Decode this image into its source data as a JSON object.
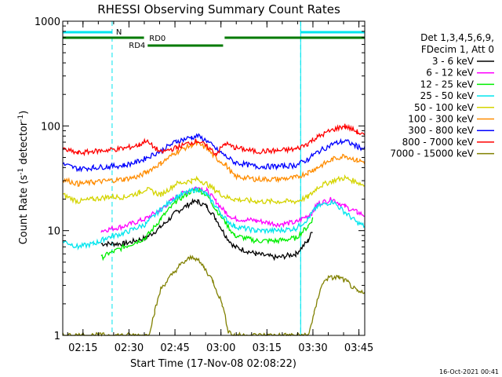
{
  "chart_data": {
    "type": "line",
    "title": "RHESSI Observing Summary Count Rates",
    "xlabel": "Start Time (17-Nov-08 02:08:22)",
    "ylabel_main": "Count Rate (s",
    "ylabel_sup1": "-1",
    "ylabel_mid": " detector",
    "ylabel_sup2": "-1",
    "ylabel_end": ")",
    "yscale": "log",
    "xlim_minutes": [
      0,
      98.5
    ],
    "ylim": [
      1,
      1000
    ],
    "x_ticks": [
      {
        "label": "02:15",
        "minutes": 6.6
      },
      {
        "label": "02:30",
        "minutes": 21.6
      },
      {
        "label": "02:45",
        "minutes": 36.6
      },
      {
        "label": "03:00",
        "minutes": 51.6
      },
      {
        "label": "03:15",
        "minutes": 66.6
      },
      {
        "label": "03:30",
        "minutes": 81.6
      },
      {
        "label": "03:45",
        "minutes": 96.6
      }
    ],
    "y_ticks": [
      {
        "label": "1",
        "value": 1
      },
      {
        "label": "10",
        "value": 10
      },
      {
        "label": "100",
        "value": 100
      },
      {
        "label": "1000",
        "value": 1000
      }
    ],
    "legend_header_1": "Det 1,3,4,5,6,9,",
    "legend_header_2": "FDecim 1, Att 0",
    "legend_placement": "right",
    "footer_date": "16-Oct-2021 00:41",
    "annotations": {
      "night_label": "N",
      "night_color": "#00e5ee",
      "rd0_label": "RD0",
      "rd4_label": "RD4",
      "rd_color": "#007a00",
      "night_intervals_minutes": [
        [
          0,
          16.1
        ],
        [
          77.6,
          98.5
        ]
      ],
      "rd0_intervals_minutes": [
        [
          0,
          26.5
        ],
        [
          52.8,
          98.5
        ]
      ],
      "rd4_intervals_minutes": [
        [
          27.7,
          52.3
        ]
      ]
    },
    "series": [
      {
        "name": "3 - 6 keV",
        "color": "#000000",
        "points": [
          [
            12.5,
            7.5
          ],
          [
            20,
            7.5
          ],
          [
            27,
            8.5
          ],
          [
            32,
            10.8
          ],
          [
            37,
            15
          ],
          [
            42,
            18.5
          ],
          [
            44,
            19
          ],
          [
            47,
            17
          ],
          [
            50,
            13
          ],
          [
            53,
            9
          ],
          [
            56,
            7
          ],
          [
            63,
            6
          ],
          [
            70,
            5.5
          ],
          [
            76,
            6
          ],
          [
            80,
            8
          ],
          [
            81.5,
            10
          ]
        ]
      },
      {
        "name": "6 - 12 keV",
        "color": "#ff00ff",
        "points": [
          [
            12.5,
            10
          ],
          [
            20,
            11
          ],
          [
            27,
            13
          ],
          [
            32,
            16
          ],
          [
            37,
            21
          ],
          [
            42,
            25
          ],
          [
            44,
            26
          ],
          [
            47,
            24
          ],
          [
            50,
            19
          ],
          [
            53,
            15
          ],
          [
            56,
            13
          ],
          [
            63,
            12.5
          ],
          [
            70,
            11.5
          ],
          [
            76,
            12
          ],
          [
            80,
            14
          ],
          [
            81.5,
            15
          ],
          [
            83,
            18
          ],
          [
            88,
            20
          ],
          [
            92,
            17
          ],
          [
            96,
            15
          ],
          [
            98.5,
            14
          ]
        ]
      },
      {
        "name": "12 - 25 keV",
        "color": "#00ee00",
        "points": [
          [
            12.5,
            5.5
          ],
          [
            15,
            6
          ],
          [
            20,
            7
          ],
          [
            27,
            8.5
          ],
          [
            32,
            13
          ],
          [
            37,
            19
          ],
          [
            42,
            24
          ],
          [
            44,
            25
          ],
          [
            47,
            22
          ],
          [
            50,
            16
          ],
          [
            53,
            12
          ],
          [
            56,
            9
          ],
          [
            63,
            8
          ],
          [
            70,
            8
          ],
          [
            76,
            8.5
          ],
          [
            80,
            11
          ],
          [
            81.5,
            13
          ]
        ]
      },
      {
        "name": "25 - 50 keV",
        "color": "#00e5ee",
        "points": [
          [
            0,
            8
          ],
          [
            5,
            7
          ],
          [
            10,
            7.5
          ],
          [
            12.5,
            8
          ],
          [
            14,
            8.5
          ],
          [
            20,
            9.5
          ],
          [
            27,
            11.5
          ],
          [
            32,
            16
          ],
          [
            37,
            21
          ],
          [
            42,
            24
          ],
          [
            44,
            25
          ],
          [
            47,
            22
          ],
          [
            50,
            17
          ],
          [
            53,
            13
          ],
          [
            56,
            11
          ],
          [
            63,
            10
          ],
          [
            70,
            10
          ],
          [
            76,
            10.5
          ],
          [
            80,
            13
          ],
          [
            81.5,
            15
          ],
          [
            83,
            17
          ],
          [
            88,
            19
          ],
          [
            92,
            15
          ],
          [
            96,
            12
          ],
          [
            98.5,
            11
          ]
        ]
      },
      {
        "name": "50 - 100 keV",
        "color": "#d4d400",
        "points": [
          [
            0,
            22
          ],
          [
            5,
            19
          ],
          [
            10,
            20
          ],
          [
            15,
            21
          ],
          [
            20,
            21
          ],
          [
            25,
            23
          ],
          [
            27,
            25
          ],
          [
            32,
            22
          ],
          [
            37,
            28
          ],
          [
            42,
            30
          ],
          [
            44,
            31
          ],
          [
            47,
            28
          ],
          [
            50,
            24
          ],
          [
            53,
            21
          ],
          [
            56,
            20
          ],
          [
            63,
            19
          ],
          [
            70,
            19
          ],
          [
            76,
            19
          ],
          [
            80,
            21
          ],
          [
            81.5,
            23
          ],
          [
            83,
            26
          ],
          [
            88,
            30
          ],
          [
            92,
            32
          ],
          [
            96,
            29
          ],
          [
            98.5,
            27
          ]
        ]
      },
      {
        "name": "100 - 300 keV",
        "color": "#ff8c00",
        "points": [
          [
            0,
            31
          ],
          [
            5,
            28
          ],
          [
            10,
            29
          ],
          [
            15,
            30
          ],
          [
            20,
            31
          ],
          [
            25,
            33
          ],
          [
            27,
            36
          ],
          [
            32,
            44
          ],
          [
            37,
            56
          ],
          [
            42,
            66
          ],
          [
            44,
            68
          ],
          [
            47,
            61
          ],
          [
            50,
            49
          ],
          [
            53,
            43
          ],
          [
            56,
            33
          ],
          [
            63,
            31
          ],
          [
            70,
            31
          ],
          [
            76,
            32
          ],
          [
            80,
            36
          ],
          [
            81.5,
            38
          ],
          [
            83,
            40
          ],
          [
            88,
            48
          ],
          [
            92,
            52
          ],
          [
            96,
            47
          ],
          [
            98.5,
            45
          ]
        ]
      },
      {
        "name": "300 - 800 keV",
        "color": "#0000ff",
        "points": [
          [
            0,
            43
          ],
          [
            5,
            39
          ],
          [
            10,
            40
          ],
          [
            15,
            41
          ],
          [
            20,
            42
          ],
          [
            25,
            46
          ],
          [
            27,
            49
          ],
          [
            32,
            58
          ],
          [
            37,
            71
          ],
          [
            42,
            78
          ],
          [
            44,
            80
          ],
          [
            47,
            72
          ],
          [
            50,
            60
          ],
          [
            53,
            52
          ],
          [
            56,
            45
          ],
          [
            63,
            41
          ],
          [
            70,
            41
          ],
          [
            76,
            42
          ],
          [
            80,
            48
          ],
          [
            81.5,
            52
          ],
          [
            83,
            56
          ],
          [
            88,
            67
          ],
          [
            92,
            72
          ],
          [
            96,
            64
          ],
          [
            98.5,
            60
          ]
        ]
      },
      {
        "name": "800 - 7000 keV",
        "color": "#ff0000",
        "points": [
          [
            0,
            60
          ],
          [
            5,
            55
          ],
          [
            10,
            57
          ],
          [
            15,
            59
          ],
          [
            20,
            61
          ],
          [
            25,
            66
          ],
          [
            27,
            72
          ],
          [
            32,
            56
          ],
          [
            37,
            62
          ],
          [
            42,
            70
          ],
          [
            44,
            72
          ],
          [
            47,
            64
          ],
          [
            50,
            54
          ],
          [
            53,
            68
          ],
          [
            56,
            62
          ],
          [
            63,
            57
          ],
          [
            70,
            58
          ],
          [
            76,
            60
          ],
          [
            80,
            68
          ],
          [
            81.5,
            74
          ],
          [
            83,
            78
          ],
          [
            88,
            92
          ],
          [
            92,
            100
          ],
          [
            96,
            88
          ],
          [
            98.5,
            80
          ]
        ]
      },
      {
        "name": "7000 - 15000 keV",
        "color": "#808000",
        "points": [
          [
            0,
            1
          ],
          [
            28,
            1
          ],
          [
            30,
            1.7
          ],
          [
            32,
            2.8
          ],
          [
            35,
            3.6
          ],
          [
            38,
            4.6
          ],
          [
            41,
            5.4
          ],
          [
            43,
            5.6
          ],
          [
            46,
            4.5
          ],
          [
            49,
            3.3
          ],
          [
            52,
            2
          ],
          [
            54,
            1.1
          ],
          [
            56,
            1
          ],
          [
            80,
            1
          ],
          [
            82,
            1.6
          ],
          [
            84,
            2.8
          ],
          [
            86,
            3.5
          ],
          [
            90,
            3.6
          ],
          [
            93,
            3.2
          ],
          [
            96,
            2.6
          ],
          [
            98.5,
            2.5
          ]
        ]
      }
    ]
  }
}
